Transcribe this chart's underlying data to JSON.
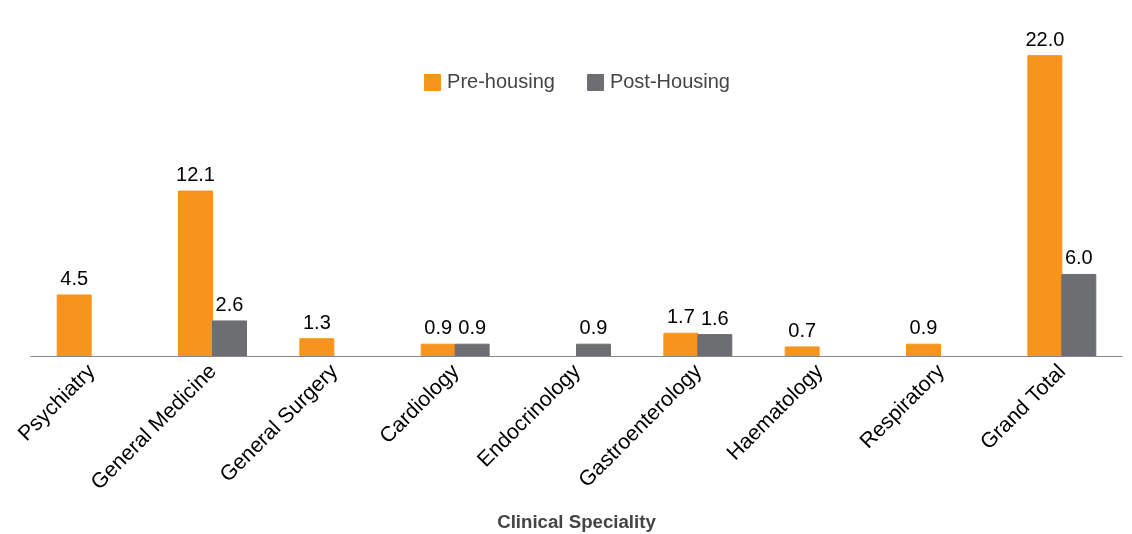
{
  "chart_data": {
    "type": "bar",
    "xlabel": "Clinical Speciality",
    "categories": [
      "Psychiatry",
      "General Medicine",
      "General Surgery",
      "Cardiology",
      "Endocrinology",
      "Gastroenterology",
      "Haematology",
      "Respiratory",
      "Grand Total"
    ],
    "series": [
      {
        "name": "Pre-housing",
        "color": "#f7941d",
        "values": [
          4.5,
          12.1,
          1.3,
          0.9,
          null,
          1.7,
          0.7,
          0.9,
          22.0
        ],
        "value_labels": [
          "4.5",
          "12.1",
          "1.3",
          "0.9",
          null,
          "1.7",
          "0.7",
          "0.9",
          "22.0"
        ]
      },
      {
        "name": "Post-Housing",
        "color": "#6d6e71",
        "values": [
          null,
          2.6,
          null,
          0.9,
          0.9,
          1.6,
          null,
          null,
          6.0
        ],
        "value_labels": [
          null,
          "2.6",
          null,
          "0.9",
          "0.9",
          "1.6",
          null,
          null,
          "6.0"
        ]
      }
    ],
    "legend": "top",
    "grid": false
  }
}
